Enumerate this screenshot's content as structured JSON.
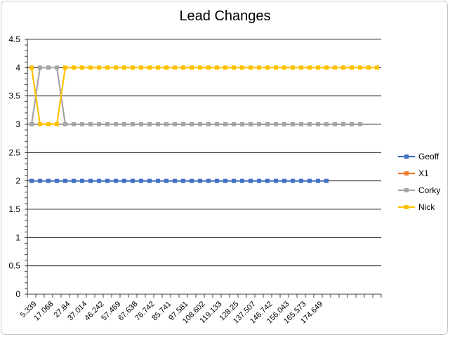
{
  "chart_data": {
    "type": "line",
    "title": "Lead Changes",
    "xlabel": "",
    "ylabel": "",
    "ylim": [
      0,
      4.5
    ],
    "y_ticks": [
      "0",
      "0.5",
      "1",
      "1.5",
      "2",
      "2.5",
      "3",
      "3.5",
      "4",
      "4.5"
    ],
    "x_tick_labels": [
      "5.339",
      "17.068",
      "27.84",
      "37.014",
      "46.242",
      "57.469",
      "67.638",
      "76.742",
      "85.741",
      "97.581",
      "108.602",
      "119.133",
      "128.25",
      "137.507",
      "146.742",
      "156.043",
      "165.573",
      "174.649"
    ],
    "grid": "horizontal",
    "legend_position": "right",
    "series": [
      {
        "name": "Geoff",
        "color": "#4472C4",
        "values": [
          2,
          2,
          2,
          2,
          2,
          2,
          2,
          2,
          2,
          2,
          2,
          2,
          2,
          2,
          2,
          2,
          2,
          2,
          2,
          2,
          2,
          2,
          2,
          2,
          2,
          2,
          2,
          2,
          2,
          2,
          2,
          2,
          2,
          2,
          2,
          2
        ]
      },
      {
        "name": "X1",
        "color": "#ED7D31",
        "values": []
      },
      {
        "name": "Corky",
        "color": "#A5A5A5",
        "values": [
          3,
          4,
          4,
          4,
          3,
          3,
          3,
          3,
          3,
          3,
          3,
          3,
          3,
          3,
          3,
          3,
          3,
          3,
          3,
          3,
          3,
          3,
          3,
          3,
          3,
          3,
          3,
          3,
          3,
          3,
          3,
          3,
          3,
          3,
          3,
          3,
          3,
          3,
          3,
          3
        ]
      },
      {
        "name": "Nick",
        "color": "#FFC000",
        "values": [
          4,
          3,
          3,
          3,
          4,
          4,
          4,
          4,
          4,
          4,
          4,
          4,
          4,
          4,
          4,
          4,
          4,
          4,
          4,
          4,
          4,
          4,
          4,
          4,
          4,
          4,
          4,
          4,
          4,
          4,
          4,
          4,
          4,
          4,
          4,
          4,
          4,
          4,
          4,
          4,
          4,
          4
        ]
      }
    ]
  }
}
